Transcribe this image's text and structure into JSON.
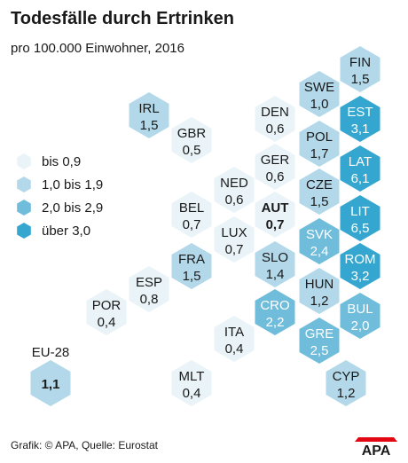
{
  "title": "Todesfälle durch Ertrinken",
  "subtitle": "pro 100.000 Einwohner, 2016",
  "colors": {
    "bis_0_9": "#e9f3f8",
    "1_0_bis_1_9": "#b2d8e9",
    "2_0_bis_2_9": "#6fbcdb",
    "ueber_3_0": "#34a6cf",
    "text_dark": "#1a1a1a",
    "text_light": "#ffffff"
  },
  "legend": [
    {
      "label": "bis 0,9",
      "class": "bis_0_9"
    },
    {
      "label": "1,0 bis 1,9",
      "class": "1_0_bis_1_9"
    },
    {
      "label": "2,0 bis 2,9",
      "class": "2_0_bis_2_9"
    },
    {
      "label": "über 3,0",
      "class": "ueber_3_0"
    }
  ],
  "eu": {
    "label": "EU-28",
    "value": "1,1",
    "class": "1_0_bis_1_9"
  },
  "countries": [
    {
      "code": "FIN",
      "value": "1,5",
      "class": "1_0_bis_1_9"
    },
    {
      "code": "SWE",
      "value": "1,0",
      "class": "1_0_bis_1_9"
    },
    {
      "code": "EST",
      "value": "3,1",
      "class": "ueber_3_0"
    },
    {
      "code": "IRL",
      "value": "1,5",
      "class": "1_0_bis_1_9"
    },
    {
      "code": "DEN",
      "value": "0,6",
      "class": "bis_0_9"
    },
    {
      "code": "GBR",
      "value": "0,5",
      "class": "bis_0_9"
    },
    {
      "code": "POL",
      "value": "1,7",
      "class": "1_0_bis_1_9"
    },
    {
      "code": "LAT",
      "value": "6,1",
      "class": "ueber_3_0"
    },
    {
      "code": "GER",
      "value": "0,6",
      "class": "bis_0_9"
    },
    {
      "code": "NED",
      "value": "0,6",
      "class": "bis_0_9"
    },
    {
      "code": "CZE",
      "value": "1,5",
      "class": "1_0_bis_1_9"
    },
    {
      "code": "BEL",
      "value": "0,7",
      "class": "bis_0_9"
    },
    {
      "code": "AUT",
      "value": "0,7",
      "class": "bis_0_9",
      "bold": true
    },
    {
      "code": "LIT",
      "value": "6,5",
      "class": "ueber_3_0"
    },
    {
      "code": "LUX",
      "value": "0,7",
      "class": "bis_0_9"
    },
    {
      "code": "SVK",
      "value": "2,4",
      "class": "2_0_bis_2_9"
    },
    {
      "code": "FRA",
      "value": "1,5",
      "class": "1_0_bis_1_9"
    },
    {
      "code": "SLO",
      "value": "1,4",
      "class": "1_0_bis_1_9"
    },
    {
      "code": "ROM",
      "value": "3,2",
      "class": "ueber_3_0"
    },
    {
      "code": "ESP",
      "value": "0,8",
      "class": "bis_0_9"
    },
    {
      "code": "HUN",
      "value": "1,2",
      "class": "1_0_bis_1_9"
    },
    {
      "code": "POR",
      "value": "0,4",
      "class": "bis_0_9"
    },
    {
      "code": "CRO",
      "value": "2,2",
      "class": "2_0_bis_2_9"
    },
    {
      "code": "BUL",
      "value": "2,0",
      "class": "2_0_bis_2_9"
    },
    {
      "code": "ITA",
      "value": "0,4",
      "class": "bis_0_9"
    },
    {
      "code": "GRE",
      "value": "2,5",
      "class": "2_0_bis_2_9"
    },
    {
      "code": "MLT",
      "value": "0,4",
      "class": "bis_0_9"
    },
    {
      "code": "CYP",
      "value": "1,2",
      "class": "1_0_bis_1_9"
    }
  ],
  "footer": "Grafik: © APA, Quelle: Eurostat",
  "logo_text": "APA"
}
